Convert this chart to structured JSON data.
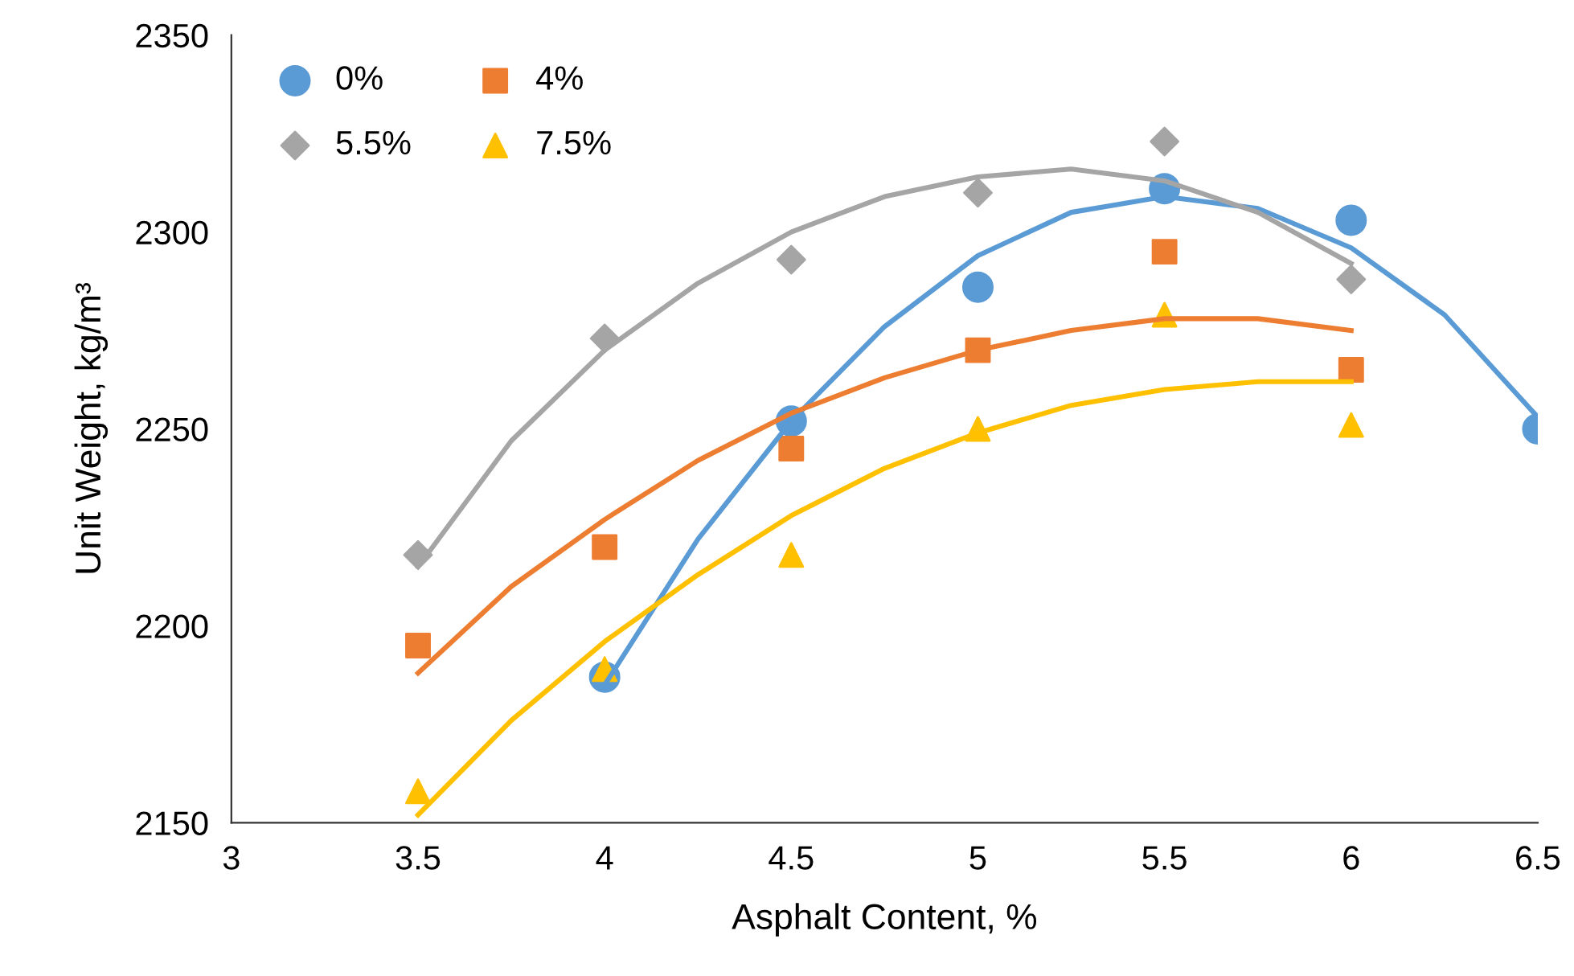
{
  "chart_data": {
    "type": "scatter",
    "xlabel": "Asphalt Content, %",
    "ylabel": "Unit Weight, kg/m³",
    "xlim": [
      3,
      6.5
    ],
    "xticks": [
      3,
      3.5,
      4,
      4.5,
      5,
      5.5,
      6,
      6.5
    ],
    "ylim": [
      2150,
      2350
    ],
    "yticks": [
      2150,
      2200,
      2250,
      2300,
      2350
    ],
    "grid": false,
    "legend": "top left",
    "series": [
      {
        "name": "0%",
        "color": "#5b9bd5",
        "marker": "circle",
        "x": [
          4,
          4.5,
          5,
          5.5,
          6,
          6.5
        ],
        "values": [
          2187,
          2252,
          2286,
          2311,
          2303,
          2250
        ]
      },
      {
        "name": "4%",
        "color": "#ed7d31",
        "marker": "square",
        "x": [
          3.5,
          4,
          4.5,
          5,
          5.5,
          6
        ],
        "values": [
          2195,
          2220,
          2245,
          2270,
          2295,
          2265
        ]
      },
      {
        "name": "5.5%",
        "color": "#a5a5a5",
        "marker": "diamond",
        "x": [
          3.5,
          4,
          4.5,
          5,
          5.5,
          6
        ],
        "values": [
          2218,
          2273,
          2293,
          2310,
          2323,
          2288
        ]
      },
      {
        "name": "7.5%",
        "color": "#ffc000",
        "marker": "triangle",
        "x": [
          3.5,
          4,
          4.5,
          5,
          5.5,
          6
        ],
        "values": [
          2158,
          2189,
          2218,
          2250,
          2279,
          2251
        ]
      },
      {
        "type": "line",
        "color": "#5b9bd5",
        "x": [
          4,
          4.25,
          4.5,
          4.75,
          5,
          5.25,
          5.5,
          5.75,
          6,
          6.25,
          6.5
        ],
        "values": [
          2185,
          2222,
          2252,
          2276,
          2294,
          2305,
          2309,
          2306,
          2296,
          2279,
          2253
        ]
      },
      {
        "type": "line",
        "color": "#ed7d31",
        "x": [
          3.5,
          3.75,
          4,
          4.25,
          4.5,
          4.75,
          5,
          5.25,
          5.5,
          5.75,
          6
        ],
        "values": [
          2188,
          2210,
          2227,
          2242,
          2254,
          2263,
          2270,
          2275,
          2278,
          2278,
          2275
        ]
      },
      {
        "type": "line",
        "color": "#a5a5a5",
        "x": [
          3.5,
          3.75,
          4,
          4.25,
          4.5,
          4.75,
          5,
          5.25,
          5.5,
          5.75,
          6
        ],
        "values": [
          2215,
          2247,
          2270,
          2287,
          2300,
          2309,
          2314,
          2316,
          2313,
          2305,
          2292
        ]
      },
      {
        "type": "line",
        "color": "#ffc000",
        "x": [
          3.5,
          3.75,
          4,
          4.25,
          4.5,
          4.75,
          5,
          5.25,
          5.5,
          5.75,
          6
        ],
        "values": [
          2152,
          2176,
          2196,
          2213,
          2228,
          2240,
          2249,
          2256,
          2260,
          2262,
          2262
        ]
      }
    ]
  }
}
